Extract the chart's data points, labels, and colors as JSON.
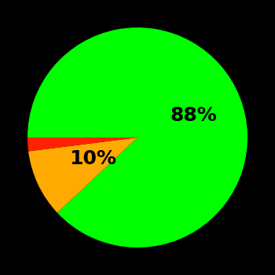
{
  "slices": [
    88,
    10,
    2
  ],
  "colors": [
    "#00ff00",
    "#ffaa00",
    "#ff2200"
  ],
  "labels": [
    "88%",
    "10%",
    ""
  ],
  "label_radii": [
    0.55,
    0.45,
    0
  ],
  "background_color": "#000000",
  "label_fontsize": 18,
  "label_color": "#000000",
  "startangle": 180,
  "counterclock": false
}
